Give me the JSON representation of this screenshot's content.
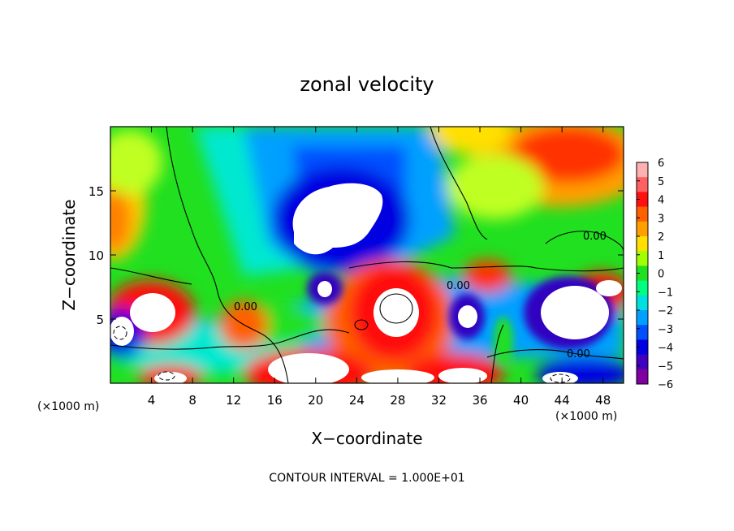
{
  "chart_data": {
    "type": "heatmap",
    "title": "zonal velocity",
    "xlabel": "X−coordinate",
    "ylabel": "Z−coordinate",
    "x_unit_left": "(×1000 m)",
    "x_unit_right": "(×1000 m)",
    "footer": "CONTOUR INTERVAL = 1.000E+01",
    "xlim": [
      0,
      50
    ],
    "ylim": [
      0,
      20
    ],
    "x_ticks": [
      "4",
      "8",
      "12",
      "16",
      "20",
      "24",
      "28",
      "32",
      "36",
      "40",
      "44",
      "48"
    ],
    "x_tick_values": [
      4,
      8,
      12,
      16,
      20,
      24,
      28,
      32,
      36,
      40,
      44,
      48
    ],
    "y_ticks": [
      "5",
      "10",
      "15"
    ],
    "y_tick_values": [
      5,
      10,
      15
    ],
    "colorbar": {
      "ticks": [
        "6",
        "5",
        "4",
        "3",
        "2",
        "1",
        "0",
        "−1",
        "−2",
        "−3",
        "−4",
        "−5",
        "−6"
      ],
      "values": [
        6,
        5,
        4,
        3,
        2,
        1,
        0,
        -1,
        -2,
        -3,
        -4,
        -5,
        -6
      ],
      "colors": [
        "#ffb0b0",
        "#ff6060",
        "#ff1010",
        "#ff6000",
        "#ffa000",
        "#ffe000",
        "#a0ff00",
        "#20e020",
        "#00ff80",
        "#00e0e0",
        "#00a0ff",
        "#0050ff",
        "#0000e0",
        "#4000c0",
        "#8000a0"
      ]
    },
    "contour_labels": [
      "0.00",
      "0.00",
      "0.00",
      "0.00"
    ],
    "regions": [
      {
        "name": "upper-left warm",
        "x": [
          0,
          5
        ],
        "z": [
          11,
          20
        ],
        "value": 2.5
      },
      {
        "name": "left green band",
        "x": [
          2,
          14
        ],
        "z": [
          10,
          20
        ],
        "value": 0.5
      },
      {
        "name": "central blue jet",
        "x": [
          14,
          32
        ],
        "z": [
          10,
          20
        ],
        "value": -4
      },
      {
        "name": "strong westward core",
        "x": [
          18,
          25
        ],
        "z": [
          11,
          16
        ],
        "value": -7
      },
      {
        "name": "upper-right warm",
        "x": [
          36,
          50
        ],
        "z": [
          14,
          20
        ],
        "value": 4
      },
      {
        "name": "right green",
        "x": [
          34,
          50
        ],
        "z": [
          9,
          14
        ],
        "value": 0.5
      },
      {
        "name": "low-level eastward core",
        "x": [
          24,
          31
        ],
        "z": [
          3,
          8
        ],
        "value": 7
      },
      {
        "name": "low-level westward cell",
        "x": [
          34,
          36
        ],
        "z": [
          4,
          7
        ],
        "value": -7
      },
      {
        "name": "right westward cell",
        "x": [
          40,
          45
        ],
        "z": [
          2,
          8
        ],
        "value": -7
      },
      {
        "name": "left eastward cell",
        "x": [
          0,
          6
        ],
        "z": [
          4,
          8
        ],
        "value": 6
      },
      {
        "name": "surface eastward",
        "x": [
          17,
          24
        ],
        "z": [
          0,
          3
        ],
        "value": 7
      }
    ]
  }
}
